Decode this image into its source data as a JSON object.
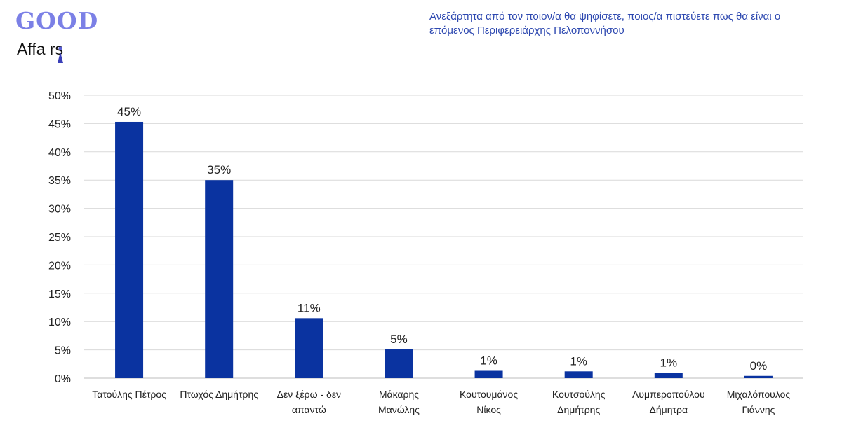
{
  "logo": {
    "good": "GOOD",
    "affairs": "Affa rs"
  },
  "chart_data": {
    "type": "bar",
    "title": "Ανεξάρτητα από τον ποιον/α θα ψηφίσετε, ποιος/α πιστεύετε πως θα είναι ο επόμενος Περιφερειάρχης Πελοποννήσου",
    "categories": [
      [
        "Τατούλης Πέτρος"
      ],
      [
        "Πτωχός Δημήτρης"
      ],
      [
        "Δεν ξέρω - δεν",
        "απαντώ"
      ],
      [
        "Μάκαρης",
        "Μανώλης"
      ],
      [
        "Κουτουμάνος",
        "Νίκος"
      ],
      [
        "Κουτσούλης",
        "Δημήτρης"
      ],
      [
        "Λυμπεροπούλου",
        "Δήμητρα"
      ],
      [
        "Μιχαλόπουλος",
        "Γιάννης"
      ]
    ],
    "values": [
      45.3,
      35.0,
      10.6,
      5.1,
      1.3,
      1.2,
      0.9,
      0.4
    ],
    "data_labels": [
      "45%",
      "35%",
      "11%",
      "5%",
      "1%",
      "1%",
      "1%",
      "0%"
    ],
    "ylim": [
      0,
      50
    ],
    "yticks": [
      "0%",
      "5%",
      "10%",
      "15%",
      "20%",
      "25%",
      "30%",
      "35%",
      "40%",
      "45%",
      "50%"
    ],
    "grid": true,
    "bar_color": "#0a33a0",
    "xlabel": "",
    "ylabel": ""
  }
}
